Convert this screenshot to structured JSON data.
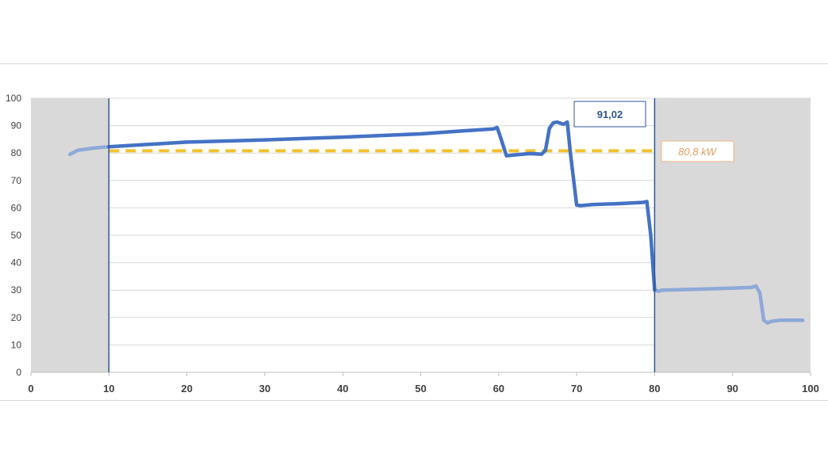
{
  "chart_data": {
    "type": "line",
    "title": "",
    "xlabel": "",
    "ylabel": "",
    "xlim": [
      0,
      100
    ],
    "ylim": [
      0,
      100
    ],
    "x_ticks": [
      "0",
      "10",
      "20",
      "30",
      "40",
      "50",
      "60",
      "70",
      "80",
      "90",
      "100"
    ],
    "y_ticks": [
      "0",
      "10",
      "20",
      "30",
      "40",
      "50",
      "60",
      "70",
      "80",
      "90",
      "100"
    ],
    "grid": "horizontal",
    "shaded_regions": [
      {
        "from": 0,
        "to": 10
      },
      {
        "from": 80,
        "to": 100
      }
    ],
    "markers": [
      10,
      80
    ],
    "series": [
      {
        "role": "power-curve",
        "color": "#4472c4",
        "x": [
          5,
          6,
          8,
          10,
          20,
          30,
          40,
          50,
          55,
          59.3,
          59.8,
          60.2,
          61,
          62,
          64,
          65.5,
          66,
          66.5,
          67,
          67.5,
          68.3,
          68.8,
          69.2,
          70,
          70.5,
          72,
          75,
          78.5,
          79,
          79.5,
          80,
          80.5,
          81,
          85,
          90,
          92.5,
          93,
          93.5,
          94,
          94.5,
          95,
          96,
          99
        ],
        "y": [
          79.5,
          81,
          81.8,
          82.3,
          84,
          84.8,
          85.8,
          87,
          88,
          88.8,
          89.3,
          86,
          79,
          79.3,
          79.8,
          79.6,
          81,
          89,
          91,
          91.3,
          90.5,
          91.3,
          80,
          61,
          60.8,
          61.2,
          61.5,
          62,
          62.3,
          50,
          30,
          29.6,
          30,
          30.3,
          30.7,
          31,
          31.5,
          29,
          19,
          18,
          18.6,
          19,
          19
        ]
      }
    ],
    "reference_line": {
      "value": 80.8,
      "from": 10,
      "to": 80,
      "label": "80,8 kW",
      "color": "#f2c12e"
    },
    "annotations": [
      {
        "text": "91,02"
      },
      {
        "text": "80,8 kW"
      }
    ]
  },
  "colors": {
    "shade": "#d9d9d9",
    "grid": "#d9d9d9",
    "marker_line": "#2f5597",
    "series_faded": "#8ea9d8"
  }
}
